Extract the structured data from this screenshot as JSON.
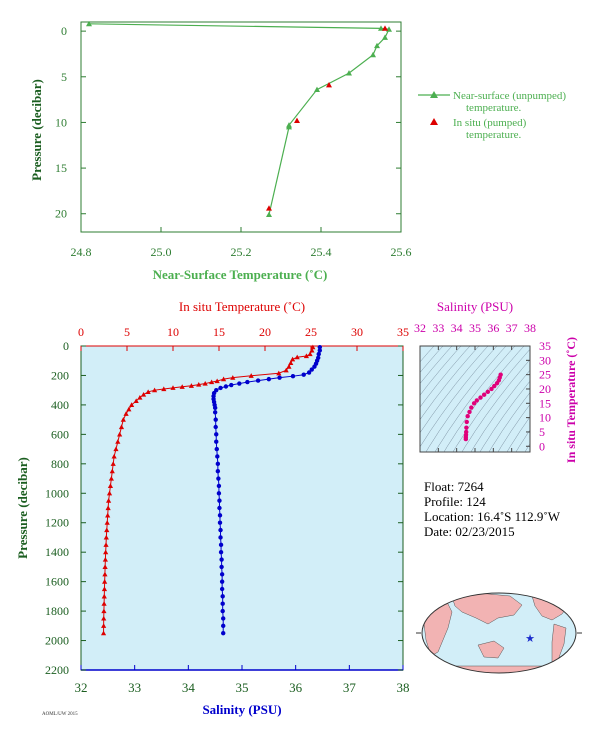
{
  "chart_data": [
    {
      "type": "line",
      "xlabel": "Near-Surface Temperature (˚C)",
      "ylabel": "Pressure (decibar)",
      "xlim": [
        24.8,
        25.6
      ],
      "ylim": [
        0,
        22
      ],
      "y_inverted": true,
      "xticks": [
        "24.8",
        "25.0",
        "25.2",
        "25.4",
        "25.6"
      ],
      "yticks": [
        "0",
        "5",
        "10",
        "15",
        "20"
      ],
      "grid": false,
      "legend_position": "right",
      "series": [
        {
          "name": "Near-surface (unpumped) temperature.",
          "color": "#4caf50",
          "marker": "triangle",
          "x": [
            24.82,
            25.55,
            25.57,
            25.56,
            25.54,
            25.53,
            25.47,
            25.39,
            25.32,
            25.32,
            25.27
          ],
          "y": [
            -0.8,
            -0.3,
            -0.2,
            0.7,
            1.6,
            2.6,
            4.6,
            6.4,
            10.3,
            10.5,
            20.1
          ]
        },
        {
          "name": "In situ (pumped) temperature.",
          "color": "#dd0000",
          "marker": "triangle",
          "x": [
            25.56,
            25.42,
            25.34,
            25.27
          ],
          "y": [
            -0.3,
            5.9,
            9.8,
            19.4
          ]
        }
      ]
    },
    {
      "type": "scatter",
      "ylabel": "Pressure (decibar)",
      "y_inverted": true,
      "ylim": [
        0,
        2200
      ],
      "yticks": [
        "0",
        "200",
        "400",
        "600",
        "800",
        "1000",
        "1200",
        "1400",
        "1600",
        "1800",
        "2000",
        "2200"
      ],
      "top_axis": {
        "label": "In situ Temperature (˚C)",
        "lim": [
          0,
          35
        ],
        "ticks": [
          "0",
          "5",
          "10",
          "15",
          "20",
          "25",
          "30",
          "35"
        ],
        "color": "#dd0000"
      },
      "bottom_axis": {
        "label": "Salinity (PSU)",
        "lim": [
          32,
          38
        ],
        "ticks": [
          "32",
          "33",
          "34",
          "35",
          "36",
          "37",
          "38"
        ],
        "color": "#0000cc"
      },
      "background": "#d2eef8",
      "series": [
        {
          "name": "Temperature",
          "axis": "top",
          "color": "#dd0000",
          "marker": "triangle",
          "points": [
            [
              25.2,
              8
            ],
            [
              25.1,
              30
            ],
            [
              24.9,
              55
            ],
            [
              24.5,
              68
            ],
            [
              23.5,
              76
            ],
            [
              23.0,
              90
            ],
            [
              22.8,
              115
            ],
            [
              22.6,
              140
            ],
            [
              22.3,
              165
            ],
            [
              21.5,
              185
            ],
            [
              18.5,
              202
            ],
            [
              16.5,
              215
            ],
            [
              15.5,
              225
            ],
            [
              14.8,
              238
            ],
            [
              14.2,
              245
            ],
            [
              13.5,
              255
            ],
            [
              12.8,
              262
            ],
            [
              12.0,
              270
            ],
            [
              11.0,
              277
            ],
            [
              10.0,
              284
            ],
            [
              9.0,
              292
            ],
            [
              8.0,
              300
            ],
            [
              7.3,
              312
            ],
            [
              6.8,
              330
            ],
            [
              6.4,
              350
            ],
            [
              6.0,
              373
            ],
            [
              5.5,
              400
            ],
            [
              5.2,
              430
            ],
            [
              4.9,
              460
            ],
            [
              4.6,
              500
            ],
            [
              4.4,
              550
            ],
            [
              4.2,
              600
            ],
            [
              4.0,
              650
            ],
            [
              3.8,
              700
            ],
            [
              3.6,
              750
            ],
            [
              3.5,
              800
            ],
            [
              3.4,
              850
            ],
            [
              3.3,
              900
            ],
            [
              3.2,
              950
            ],
            [
              3.1,
              1000
            ],
            [
              3.0,
              1050
            ],
            [
              2.95,
              1100
            ],
            [
              2.9,
              1150
            ],
            [
              2.85,
              1200
            ],
            [
              2.8,
              1250
            ],
            [
              2.75,
              1300
            ],
            [
              2.72,
              1350
            ],
            [
              2.68,
              1400
            ],
            [
              2.65,
              1450
            ],
            [
              2.62,
              1500
            ],
            [
              2.6,
              1550
            ],
            [
              2.57,
              1600
            ],
            [
              2.55,
              1650
            ],
            [
              2.53,
              1700
            ],
            [
              2.51,
              1750
            ],
            [
              2.49,
              1800
            ],
            [
              2.47,
              1850
            ],
            [
              2.46,
              1900
            ],
            [
              2.45,
              1950
            ]
          ]
        },
        {
          "name": "Salinity",
          "axis": "bottom",
          "color": "#0000cc",
          "marker": "circle",
          "points": [
            [
              36.45,
              8
            ],
            [
              36.45,
              30
            ],
            [
              36.43,
              55
            ],
            [
              36.42,
              80
            ],
            [
              36.4,
              100
            ],
            [
              36.38,
              120
            ],
            [
              36.35,
              140
            ],
            [
              36.3,
              160
            ],
            [
              36.25,
              180
            ],
            [
              36.15,
              195
            ],
            [
              35.95,
              205
            ],
            [
              35.7,
              215
            ],
            [
              35.5,
              225
            ],
            [
              35.3,
              235
            ],
            [
              35.1,
              245
            ],
            [
              34.95,
              255
            ],
            [
              34.8,
              265
            ],
            [
              34.7,
              275
            ],
            [
              34.6,
              285
            ],
            [
              34.52,
              300
            ],
            [
              34.48,
              320
            ],
            [
              34.47,
              340
            ],
            [
              34.47,
              360
            ],
            [
              34.48,
              380
            ],
            [
              34.49,
              400
            ],
            [
              34.5,
              420
            ],
            [
              34.5,
              450
            ],
            [
              34.51,
              500
            ],
            [
              34.51,
              550
            ],
            [
              34.52,
              600
            ],
            [
              34.52,
              650
            ],
            [
              34.53,
              700
            ],
            [
              34.54,
              750
            ],
            [
              34.55,
              800
            ],
            [
              34.55,
              850
            ],
            [
              34.56,
              900
            ],
            [
              34.57,
              950
            ],
            [
              34.57,
              1000
            ],
            [
              34.58,
              1050
            ],
            [
              34.58,
              1100
            ],
            [
              34.59,
              1150
            ],
            [
              34.59,
              1200
            ],
            [
              34.6,
              1250
            ],
            [
              34.6,
              1300
            ],
            [
              34.61,
              1350
            ],
            [
              34.61,
              1400
            ],
            [
              34.62,
              1450
            ],
            [
              34.62,
              1500
            ],
            [
              34.63,
              1550
            ],
            [
              34.63,
              1600
            ],
            [
              34.63,
              1650
            ],
            [
              34.64,
              1700
            ],
            [
              34.64,
              1750
            ],
            [
              34.64,
              1800
            ],
            [
              34.65,
              1850
            ],
            [
              34.65,
              1900
            ],
            [
              34.65,
              1950
            ]
          ]
        }
      ]
    },
    {
      "type": "scatter",
      "xlabel": "Salinity (PSU)",
      "ylabel": "In situ Temperature (˚C)",
      "xlim": [
        32,
        38
      ],
      "ylim": [
        -2,
        35
      ],
      "xticks": [
        "32",
        "33",
        "34",
        "35",
        "36",
        "37",
        "38"
      ],
      "yticks": [
        "0",
        "5",
        "10",
        "15",
        "20",
        "25",
        "30",
        "35"
      ],
      "color": "#e0007a",
      "contour_color": "#7a8fa0",
      "points": [
        [
          34.5,
          2.5
        ],
        [
          34.5,
          3.2
        ],
        [
          34.51,
          4.0
        ],
        [
          34.52,
          5.0
        ],
        [
          34.53,
          6.5
        ],
        [
          34.55,
          8.5
        ],
        [
          34.6,
          10.5
        ],
        [
          34.7,
          12.0
        ],
        [
          34.8,
          13.5
        ],
        [
          34.95,
          15.0
        ],
        [
          35.1,
          16.0
        ],
        [
          35.3,
          17.0
        ],
        [
          35.5,
          18.0
        ],
        [
          35.7,
          19.0
        ],
        [
          35.9,
          20.0
        ],
        [
          36.05,
          21.0
        ],
        [
          36.2,
          22.0
        ],
        [
          36.3,
          23.0
        ],
        [
          36.35,
          24.0
        ],
        [
          36.4,
          25.0
        ]
      ]
    },
    {
      "type": "map",
      "marker_color": "#1a2bcc"
    }
  ],
  "info": {
    "float": "Float:  7264",
    "profile": "Profile:  124",
    "location": "Location:  16.4˚S  112.9˚W",
    "date": "Date:  02/23/2015"
  },
  "footnote": "AOML/UW 2015"
}
